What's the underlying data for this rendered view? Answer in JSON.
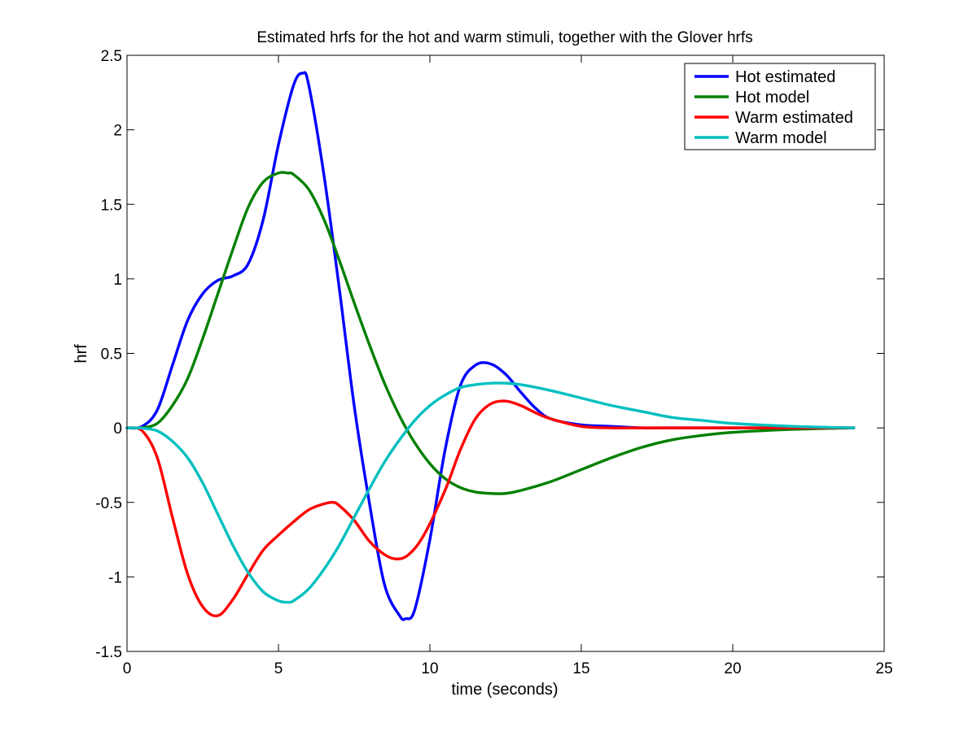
{
  "chart_data": {
    "type": "line",
    "title": "Estimated hrfs for the hot and warm stimuli, together with the Glover hrfs",
    "xlabel": "time (seconds)",
    "ylabel": "hrf",
    "xlim": [
      0,
      25
    ],
    "ylim": [
      -1.5,
      2.5
    ],
    "xticks": [
      0,
      5,
      10,
      15,
      20,
      25
    ],
    "xtick_labels": [
      "0",
      "5",
      "10",
      "15",
      "20",
      "25"
    ],
    "yticks": [
      -1.5,
      -1,
      -0.5,
      0,
      0.5,
      1,
      1.5,
      2,
      2.5
    ],
    "ytick_labels": [
      "-1.5",
      "-1",
      "-0.5",
      "0",
      "0.5",
      "1",
      "1.5",
      "2",
      "2.5"
    ],
    "grid": false,
    "legend_position": "top-right",
    "series": [
      {
        "name": "Hot estimated",
        "color": "#0000ff",
        "x": [
          0,
          0.5,
          1,
          1.5,
          2,
          2.5,
          3,
          3.5,
          4,
          4.5,
          5,
          5.5,
          5.8,
          6,
          6.5,
          7,
          7.5,
          8,
          8.5,
          9,
          9.2,
          9.5,
          10,
          10.5,
          11,
          11.5,
          12,
          12.5,
          13,
          13.5,
          14,
          15,
          16,
          17,
          18,
          20,
          22,
          24
        ],
        "y": [
          0,
          0.01,
          0.12,
          0.42,
          0.72,
          0.9,
          0.99,
          1.02,
          1.1,
          1.4,
          1.9,
          2.3,
          2.38,
          2.3,
          1.7,
          0.95,
          0.15,
          -0.5,
          -1.05,
          -1.26,
          -1.28,
          -1.22,
          -0.75,
          -0.15,
          0.28,
          0.42,
          0.43,
          0.36,
          0.24,
          0.13,
          0.06,
          0.02,
          0.01,
          0,
          0,
          0,
          0,
          0
        ]
      },
      {
        "name": "Hot model",
        "color": "#008000",
        "x": [
          0,
          0.5,
          1,
          1.5,
          2,
          2.5,
          3,
          3.5,
          4,
          4.5,
          5,
          5.3,
          5.5,
          6,
          6.5,
          7,
          7.5,
          8,
          8.5,
          9,
          9.5,
          10,
          10.5,
          11,
          11.5,
          12,
          12.5,
          13,
          14,
          15,
          16,
          17,
          18,
          19,
          20,
          22,
          24
        ],
        "y": [
          0,
          0.002,
          0.03,
          0.15,
          0.33,
          0.6,
          0.9,
          1.2,
          1.48,
          1.65,
          1.71,
          1.71,
          1.7,
          1.6,
          1.4,
          1.13,
          0.84,
          0.56,
          0.3,
          0.08,
          -0.1,
          -0.24,
          -0.34,
          -0.4,
          -0.43,
          -0.44,
          -0.44,
          -0.42,
          -0.36,
          -0.28,
          -0.2,
          -0.13,
          -0.08,
          -0.05,
          -0.03,
          -0.01,
          0
        ]
      },
      {
        "name": "Warm estimated",
        "color": "#ff0000",
        "x": [
          0,
          0.5,
          1,
          1.5,
          2,
          2.5,
          3,
          3.5,
          4,
          4.5,
          5,
          5.5,
          6,
          6.5,
          6.8,
          7,
          7.5,
          8,
          8.5,
          8.9,
          9.3,
          9.8,
          10.5,
          11,
          11.5,
          12,
          12.5,
          13,
          13.5,
          14,
          15,
          16,
          17,
          18,
          20,
          22,
          24
        ],
        "y": [
          0,
          -0.02,
          -0.2,
          -0.6,
          -0.98,
          -1.2,
          -1.26,
          -1.15,
          -0.98,
          -0.82,
          -0.72,
          -0.63,
          -0.55,
          -0.51,
          -0.5,
          -0.52,
          -0.62,
          -0.76,
          -0.85,
          -0.88,
          -0.85,
          -0.72,
          -0.42,
          -0.15,
          0.06,
          0.16,
          0.18,
          0.15,
          0.1,
          0.06,
          0.01,
          0,
          0,
          0,
          0,
          0,
          0
        ]
      },
      {
        "name": "Warm model",
        "color": "#00bfbf",
        "x": [
          0,
          0.5,
          1,
          1.5,
          2,
          2.5,
          3,
          3.5,
          4,
          4.5,
          5,
          5.3,
          5.5,
          6,
          6.5,
          7,
          7.5,
          8,
          8.5,
          9,
          9.5,
          10,
          10.5,
          11,
          11.5,
          12,
          12.5,
          13,
          14,
          15,
          16,
          17,
          18,
          19,
          20,
          22,
          24
        ],
        "y": [
          0,
          -0.002,
          -0.02,
          -0.09,
          -0.2,
          -0.37,
          -0.58,
          -0.79,
          -0.97,
          -1.1,
          -1.16,
          -1.17,
          -1.16,
          -1.08,
          -0.95,
          -0.79,
          -0.6,
          -0.41,
          -0.23,
          -0.08,
          0.05,
          0.15,
          0.22,
          0.27,
          0.29,
          0.3,
          0.3,
          0.29,
          0.25,
          0.2,
          0.15,
          0.11,
          0.07,
          0.05,
          0.03,
          0.01,
          0
        ]
      }
    ]
  }
}
